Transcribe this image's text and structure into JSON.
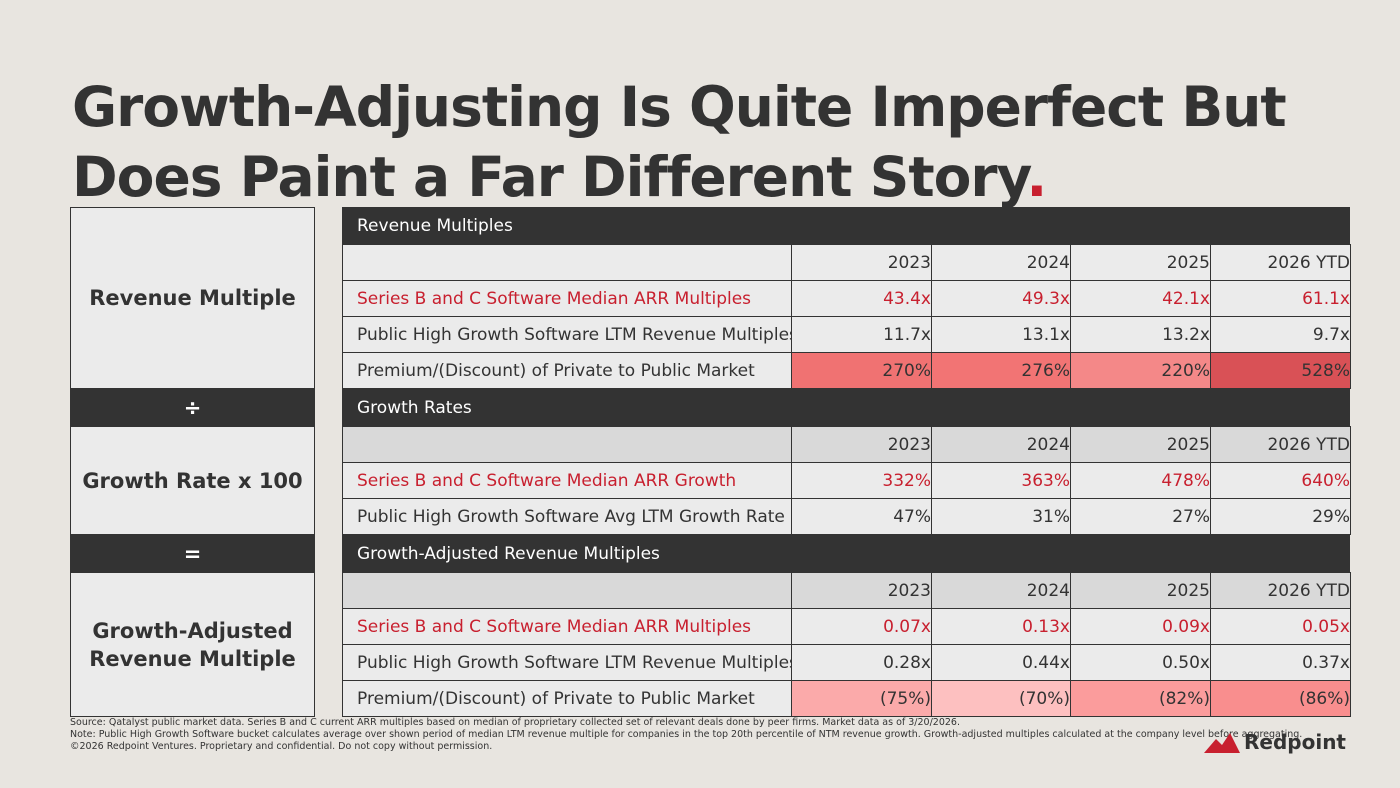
{
  "header": {
    "title_lines": [
      "Growth-Adjusting Is Quite Imperfect But",
      "Does Paint a Far Different Story"
    ],
    "title_end": "."
  },
  "formula": [
    "Revenue Multiple",
    "÷",
    "Growth Rate x 100",
    "=",
    "Growth-Adjusted Revenue Multiple"
  ],
  "sections": [
    {
      "heading": "Revenue Multiples",
      "columns": [
        "2023",
        "2024",
        "2025",
        "2026 YTD"
      ],
      "column_fill": "#ebebeb",
      "rows": [
        {
          "label": "Series B and C Software Median ARR Multiples",
          "values": [
            "43.4x",
            "49.3x",
            "42.1x",
            "61.1x"
          ],
          "color": "#c8202f"
        },
        {
          "label": "Public High Growth Software LTM Revenue Multiples",
          "values": [
            "11.7x",
            "13.1x",
            "13.2x",
            "9.7x"
          ]
        },
        {
          "label": "Premium/(Discount) of Private to Public Market",
          "values": [
            "270%",
            "276%",
            "220%",
            "528%"
          ],
          "fills": [
            "#f07272",
            "#f27474",
            "#f48888",
            "#d95156"
          ]
        }
      ]
    },
    {
      "heading": "Growth Rates",
      "columns": [
        "2023",
        "2024",
        "2025",
        "2026 YTD"
      ],
      "column_fill": "#d9d9d9",
      "rows": [
        {
          "label": "Series B and C Software Median ARR Growth",
          "values": [
            "332%",
            "363%",
            "478%",
            "640%"
          ],
          "color": "#c8202f"
        },
        {
          "label": "Public High Growth Software Avg LTM Growth Rate",
          "values": [
            "47%",
            "31%",
            "27%",
            "29%"
          ]
        }
      ]
    },
    {
      "heading": "Growth-Adjusted Revenue Multiples",
      "columns": [
        "2023",
        "2024",
        "2025",
        "2026 YTD"
      ],
      "column_fill": "#d9d9d9",
      "rows": [
        {
          "label": "Series B and C Software Median ARR Multiples",
          "values": [
            "0.07x",
            "0.13x",
            "0.09x",
            "0.05x"
          ],
          "color": "#c8202f"
        },
        {
          "label": "Public High Growth Software LTM Revenue Multiples",
          "values": [
            "0.28x",
            "0.44x",
            "0.50x",
            "0.37x"
          ]
        },
        {
          "label": "Premium/(Discount) of Private to Public Market",
          "values": [
            "(75%)",
            "(70%)",
            "(82%)",
            "(86%)"
          ],
          "fills": [
            "#fbaaaa",
            "#fdc0c0",
            "#fb9c9c",
            "#f98e8e"
          ]
        }
      ]
    }
  ],
  "footnotes": [
    "Source: Qatalyst public market data. Series B and C current ARR multiples based on median of proprietary collected set of relevant deals done by peer firms. Market data as of 3/20/2026.",
    "Note: Public High Growth Software bucket calculates average over shown period of median LTM revenue multiple for companies in the top 20th percentile of NTM revenue growth. Growth-adjusted multiples calculated at the company level before aggregating.",
    "©2026 Redpoint Ventures. Proprietary and confidential. Do not copy without permission."
  ],
  "logo": "Redpoint"
}
